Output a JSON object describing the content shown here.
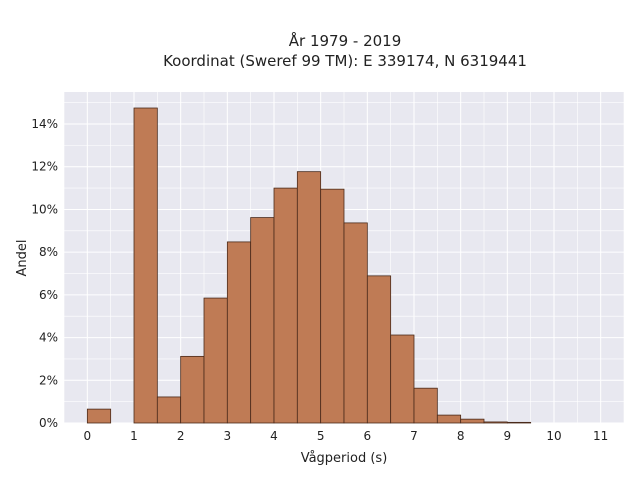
{
  "chart_data": {
    "type": "bar",
    "title": "År 1979 - 2019",
    "subtitle": "Koordinat (Sweref 99 TM): E 339174, N 6319441",
    "xlabel": "Vågperiod (s)",
    "ylabel": "Andel",
    "xlim": [
      -0.5,
      11.5
    ],
    "ylim": [
      0,
      0.155
    ],
    "x_ticks": [
      0,
      1,
      2,
      3,
      4,
      5,
      6,
      7,
      8,
      9,
      10,
      11
    ],
    "y_ticks": [
      0,
      0.02,
      0.04,
      0.06,
      0.08,
      0.1,
      0.12,
      0.14
    ],
    "y_tick_labels": [
      "0%",
      "2%",
      "4%",
      "6%",
      "8%",
      "10%",
      "12%",
      "14%"
    ],
    "bin_width": 0.5,
    "bins": [
      {
        "start": 0.0,
        "value": 0.0065
      },
      {
        "start": 1.0,
        "value": 0.1475
      },
      {
        "start": 1.5,
        "value": 0.0122
      },
      {
        "start": 2.0,
        "value": 0.0312
      },
      {
        "start": 2.5,
        "value": 0.0585
      },
      {
        "start": 3.0,
        "value": 0.0848
      },
      {
        "start": 3.5,
        "value": 0.0962
      },
      {
        "start": 4.0,
        "value": 0.11
      },
      {
        "start": 4.5,
        "value": 0.1177
      },
      {
        "start": 5.0,
        "value": 0.1095
      },
      {
        "start": 5.5,
        "value": 0.0937
      },
      {
        "start": 6.0,
        "value": 0.0689
      },
      {
        "start": 6.5,
        "value": 0.0412
      },
      {
        "start": 7.0,
        "value": 0.0163
      },
      {
        "start": 7.5,
        "value": 0.0037
      },
      {
        "start": 8.0,
        "value": 0.0018
      },
      {
        "start": 8.5,
        "value": 0.0005
      },
      {
        "start": 9.0,
        "value": 0.0003
      }
    ],
    "grid": true,
    "colors": {
      "bar_fill": "#bf7b55",
      "bar_edge": "#4a2a1a",
      "plot_bg": "#e8e8f0",
      "grid": "#ffffff"
    }
  }
}
